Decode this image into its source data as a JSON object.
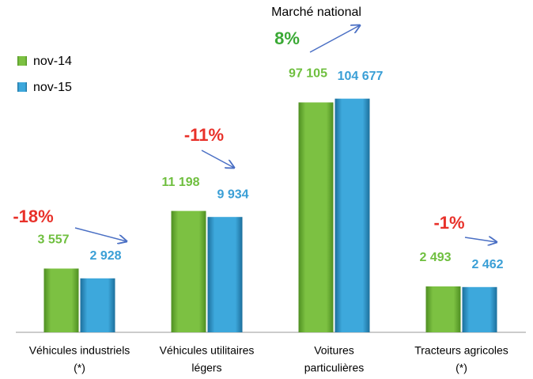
{
  "chart_data": {
    "type": "bar",
    "title": "Marché national",
    "categories": [
      [
        "Véhicules industriels",
        "(*)"
      ],
      [
        "Véhicules utilitaires",
        "légers"
      ],
      [
        "Voitures",
        "particulières"
      ],
      [
        "Tracteurs agricoles",
        "(*)"
      ]
    ],
    "series": [
      {
        "name": "nov-14",
        "color": "#7cc142",
        "label_color": "#6fbf3f",
        "values": [
          3557,
          11198,
          97105,
          2493
        ],
        "value_labels": [
          "3 557",
          "11 198",
          "97 105",
          "2 493"
        ]
      },
      {
        "name": "nov-15",
        "color": "#3da8dc",
        "label_color": "#3a9fd6",
        "values": [
          2928,
          9934,
          104677,
          2462
        ],
        "value_labels": [
          "2  928",
          "9 934",
          "104 677",
          "2 462"
        ]
      }
    ],
    "annotations": [
      {
        "text": "-18%",
        "color": "#e8312a"
      },
      {
        "text": "-11%",
        "color": "#e8312a"
      },
      {
        "text": "8%",
        "color": "#3aa935"
      },
      {
        "text": "-1%",
        "color": "#e8312a"
      }
    ],
    "ylog": true,
    "ylim": [
      1000,
      120000
    ]
  }
}
